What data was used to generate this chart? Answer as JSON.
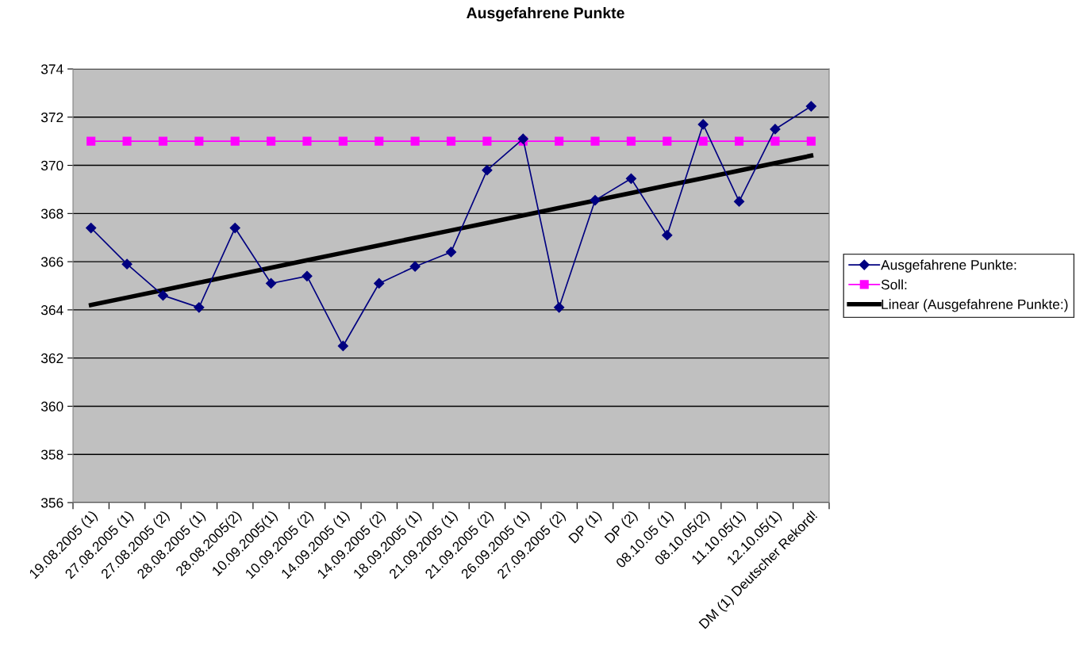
{
  "chart_data": {
    "type": "line",
    "title": "Ausgefahrene Punkte",
    "categories": [
      "19.08.2005 (1)",
      "27.08.2005 (1)",
      "27.08.2005 (2)",
      "28.08.2005 (1)",
      "28.08.2005(2)",
      "10.09.2005(1)",
      "10.09.2005 (2)",
      "14.09.2005 (1)",
      "14.09.2005 (2)",
      "18.09.2005 (1)",
      "21.09.2005 (1)",
      "21.09.2005 (2)",
      "26.09.2005 (1)",
      "27.09.2005 (2)",
      "DP (1)",
      "DP (2)",
      "08.10.05 (1)",
      "08.10.05(2)",
      "11.10.05(1)",
      "12.10.05(1)",
      "DM (1) Deutscher Rekord!"
    ],
    "series": [
      {
        "name": "Ausgefahrene Punkte:",
        "color": "#000080",
        "marker": "diamond",
        "values": [
          367.4,
          365.9,
          364.6,
          364.1,
          367.4,
          365.1,
          365.4,
          362.5,
          365.1,
          365.8,
          366.4,
          369.8,
          371.1,
          364.1,
          368.55,
          369.45,
          367.1,
          371.7,
          368.5,
          371.5,
          372.45
        ]
      },
      {
        "name": "Soll:",
        "color": "#ff00ff",
        "marker": "square",
        "values": [
          371,
          371,
          371,
          371,
          371,
          371,
          371,
          371,
          371,
          371,
          371,
          371,
          371,
          371,
          371,
          371,
          371,
          371,
          371,
          371,
          371
        ]
      },
      {
        "name": "Linear (Ausgefahrene Punkte:)",
        "color": "#000000",
        "marker": "none",
        "values": [
          364.2,
          364.51,
          364.82,
          365.13,
          365.44,
          365.75,
          366.06,
          366.37,
          366.68,
          366.99,
          367.3,
          367.61,
          367.92,
          368.23,
          368.54,
          368.85,
          369.16,
          369.47,
          369.78,
          370.09,
          370.4
        ]
      }
    ],
    "ylim": [
      356,
      374
    ],
    "yticks": [
      356,
      358,
      360,
      362,
      364,
      366,
      368,
      370,
      372,
      374
    ],
    "grid": "y",
    "legend": "right"
  }
}
